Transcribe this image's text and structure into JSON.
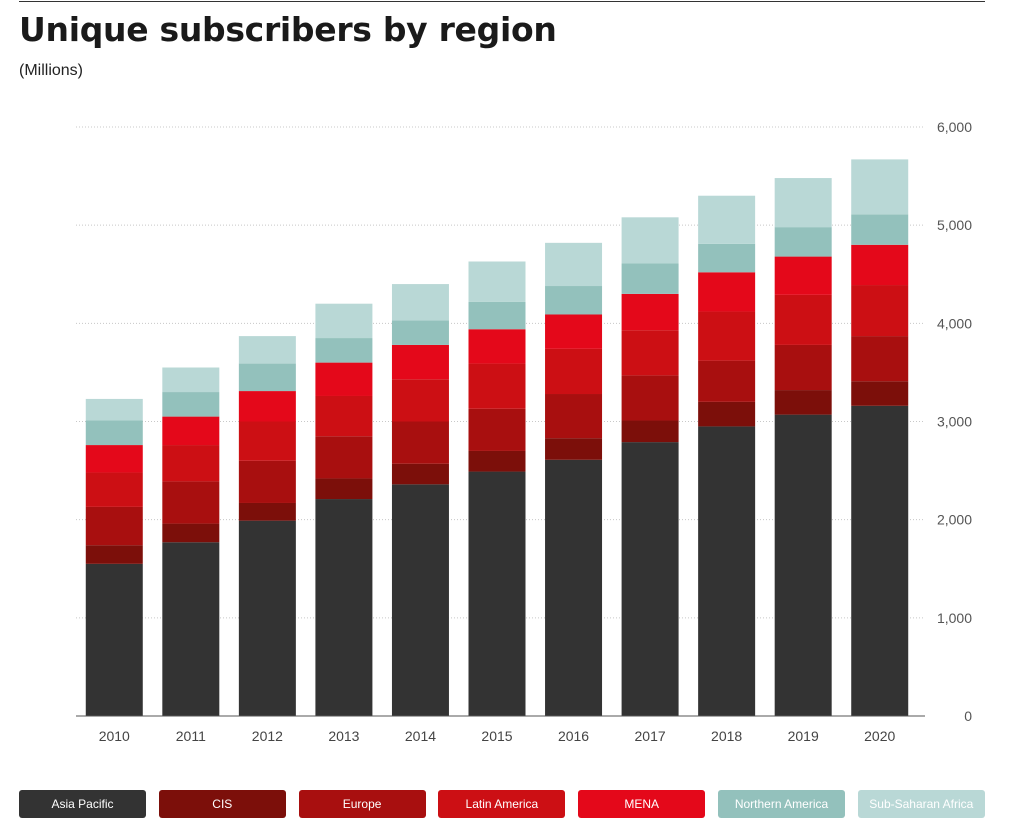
{
  "title": "Unique subscribers by region",
  "subtitle": "(Millions)",
  "chart_data": {
    "type": "bar",
    "stacked": true,
    "categories": [
      "2010",
      "2011",
      "2012",
      "2013",
      "2014",
      "2015",
      "2016",
      "2017",
      "2018",
      "2019",
      "2020"
    ],
    "ylim": [
      0,
      6000
    ],
    "yticks": [
      0,
      1000,
      2000,
      3000,
      4000,
      5000,
      6000
    ],
    "ytick_labels": [
      "0",
      "1,000",
      "2,000",
      "3,000",
      "4,000",
      "5,000",
      "6,000"
    ],
    "grid": true,
    "legend_placement": "bottom",
    "series": [
      {
        "name": "Asia Pacific",
        "color": "#333333",
        "values": [
          1550,
          1770,
          1990,
          2210,
          2360,
          2490,
          2610,
          2790,
          2950,
          3070,
          3160
        ]
      },
      {
        "name": "CIS",
        "color": "#7c0f0a",
        "values": [
          190,
          190,
          180,
          210,
          210,
          210,
          220,
          220,
          250,
          250,
          250
        ]
      },
      {
        "name": "Europe",
        "color": "#a80f0f",
        "values": [
          390,
          430,
          430,
          430,
          430,
          430,
          450,
          460,
          420,
          460,
          460
        ]
      },
      {
        "name": "Latin America",
        "color": "#cc0f14",
        "values": [
          350,
          370,
          400,
          410,
          430,
          460,
          460,
          460,
          500,
          510,
          520
        ]
      },
      {
        "name": "MENA",
        "color": "#e4081a",
        "values": [
          280,
          290,
          310,
          340,
          350,
          350,
          350,
          370,
          400,
          390,
          410
        ]
      },
      {
        "name": "Northern America",
        "color": "#93c1bc",
        "values": [
          250,
          250,
          280,
          250,
          250,
          280,
          290,
          310,
          290,
          300,
          310
        ]
      },
      {
        "name": "Sub-Saharan Africa",
        "color": "#b9d8d6",
        "values": [
          220,
          250,
          280,
          350,
          370,
          410,
          440,
          470,
          490,
          500,
          560
        ]
      }
    ]
  }
}
